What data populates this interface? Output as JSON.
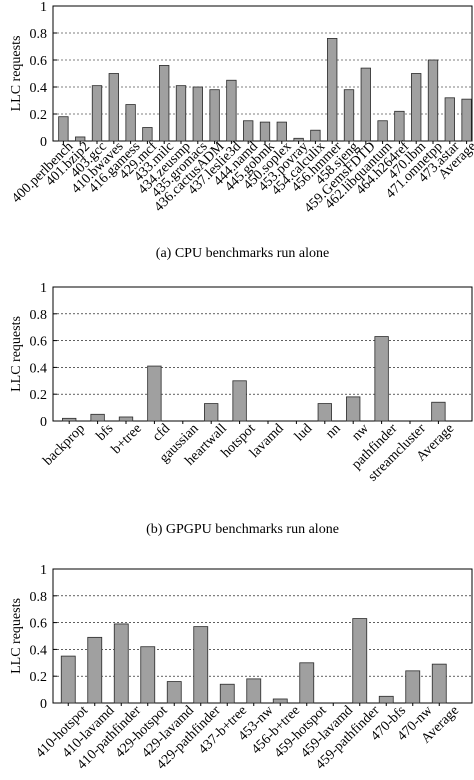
{
  "colors": {
    "bar_fill": "#a0a0a0",
    "bar_stroke": "#2a2a2a",
    "axis": "#000000",
    "grid": "#000000"
  },
  "chart_data": [
    {
      "type": "bar",
      "caption": "(a)  CPU benchmarks run alone",
      "ylabel": "LLC requests",
      "ylim": [
        0,
        1
      ],
      "yticks": [
        "0",
        "0.2",
        "0.4",
        "0.6",
        "0.8",
        "1"
      ],
      "grid": "horizontal dashed",
      "categories": [
        "400.perlbench",
        "401.bzip2",
        "403.gcc",
        "410.bwaves",
        "416.gamess",
        "429.mcf",
        "433.milc",
        "434.zeusmp",
        "435.gromacs",
        "436.cactusADM",
        "437.leslie3d",
        "444.namd",
        "445.gobmk",
        "450.soplex",
        "453.povray",
        "454.calculix",
        "456.hmmer",
        "458.sjeng",
        "459.GemsFDTD",
        "462.libquantum",
        "464.h264ref",
        "470.lbm",
        "471.omnetpp",
        "473.astar",
        "Average"
      ],
      "values": [
        0.18,
        0.03,
        0.41,
        0.5,
        0.27,
        0.1,
        0.56,
        0.41,
        0.4,
        0.38,
        0.45,
        0.15,
        0.14,
        0.14,
        0.02,
        0.08,
        0.76,
        0.38,
        0.54,
        0.15,
        0.22,
        0.5,
        0.6,
        0.32,
        0.31
      ]
    },
    {
      "type": "bar",
      "caption": "(b)  GPGPU benchmarks run alone",
      "ylabel": "LLC requests",
      "ylim": [
        0,
        1
      ],
      "yticks": [
        "0",
        "0.2",
        "0.4",
        "0.6",
        "0.8",
        "1"
      ],
      "grid": "horizontal dashed",
      "categories": [
        "backprop",
        "bfs",
        "b+tree",
        "cfd",
        "gaussian",
        "heartwall",
        "hotspot",
        "lavamd",
        "lud",
        "nn",
        "nw",
        "pathfinder",
        "streamcluster",
        "Average"
      ],
      "values": [
        0.02,
        0.05,
        0.03,
        0.41,
        0,
        0.13,
        0.3,
        0,
        0,
        0.13,
        0.18,
        0.63,
        0,
        0.14
      ]
    },
    {
      "type": "bar",
      "caption": "",
      "ylabel": "LLC requests",
      "ylim": [
        0,
        1
      ],
      "yticks": [
        "0",
        "0.2",
        "0.4",
        "0.6",
        "0.8",
        "1"
      ],
      "grid": "horizontal dashed",
      "categories": [
        "410-hotspot",
        "410-lavamd",
        "410-pathfinder",
        "429-hotspot",
        "429-lavamd",
        "429-pathfinder",
        "437-b+tree",
        "453-nw",
        "456-b+tree",
        "459-hotspot",
        "459-lavamd",
        "459-pathfinder",
        "470-bfs",
        "470-nw",
        "Average"
      ],
      "values": [
        0.35,
        0.49,
        0.59,
        0.42,
        0.16,
        0.57,
        0.14,
        0.18,
        0.03,
        0.3,
        0,
        0.63,
        0.05,
        0.24,
        0.29
      ]
    }
  ]
}
